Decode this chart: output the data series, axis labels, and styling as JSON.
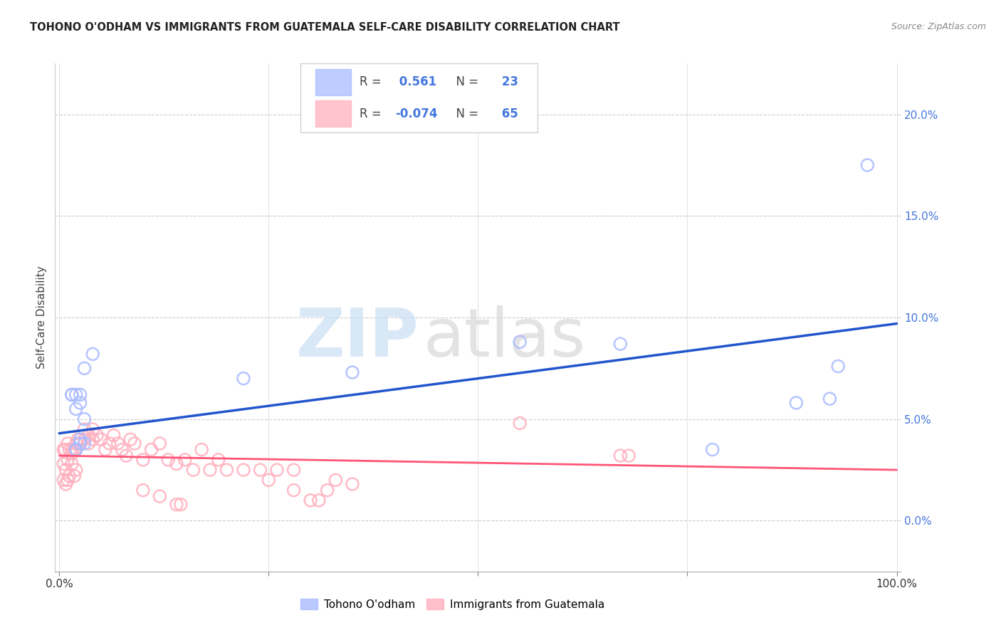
{
  "title": "TOHONO O'ODHAM VS IMMIGRANTS FROM GUATEMALA SELF-CARE DISABILITY CORRELATION CHART",
  "source": "Source: ZipAtlas.com",
  "ylabel": "Self-Care Disability",
  "xlim": [
    -0.005,
    1.005
  ],
  "ylim": [
    -0.025,
    0.225
  ],
  "ytick_vals": [
    0.0,
    0.05,
    0.1,
    0.15,
    0.2
  ],
  "ytick_labels": [
    "0.0%",
    "5.0%",
    "10.0%",
    "15.0%",
    "20.0%"
  ],
  "xtick_vals": [
    0.0,
    0.25,
    0.5,
    0.75,
    1.0
  ],
  "xtick_labels": [
    "0.0%",
    "",
    "",
    "",
    "100.0%"
  ],
  "blue_R": "0.561",
  "blue_N": "23",
  "pink_R": "-0.074",
  "pink_N": "65",
  "blue_scatter_color": "#AABBFF",
  "pink_scatter_color": "#FFB0BE",
  "blue_line_color": "#2255CC",
  "pink_line_color": "#FF5577",
  "ytick_color": "#4477DD",
  "blue_line": [
    0.0,
    0.043,
    1.0,
    0.097
  ],
  "pink_line": [
    0.0,
    0.032,
    1.0,
    0.025
  ],
  "blue_scatter_x": [
    0.02,
    0.03,
    0.04,
    0.025,
    0.02,
    0.025,
    0.015,
    0.02,
    0.025,
    0.03,
    0.02,
    0.025,
    0.03,
    0.015,
    0.22,
    0.35,
    0.55,
    0.67,
    0.78,
    0.88,
    0.92,
    0.93,
    0.965
  ],
  "blue_scatter_y": [
    0.055,
    0.075,
    0.082,
    0.062,
    0.062,
    0.058,
    0.062,
    0.035,
    0.038,
    0.05,
    0.035,
    0.04,
    0.038,
    0.062,
    0.07,
    0.073,
    0.088,
    0.087,
    0.035,
    0.058,
    0.06,
    0.076,
    0.175
  ],
  "pink_scatter_x": [
    0.005,
    0.007,
    0.01,
    0.012,
    0.015,
    0.015,
    0.018,
    0.02,
    0.022,
    0.025,
    0.03,
    0.03,
    0.035,
    0.035,
    0.04,
    0.04,
    0.045,
    0.05,
    0.055,
    0.06,
    0.065,
    0.07,
    0.075,
    0.08,
    0.085,
    0.09,
    0.1,
    0.11,
    0.12,
    0.13,
    0.14,
    0.15,
    0.16,
    0.17,
    0.18,
    0.19,
    0.2,
    0.22,
    0.24,
    0.26,
    0.28,
    0.1,
    0.12,
    0.14,
    0.145,
    0.25,
    0.28,
    0.3,
    0.31,
    0.32,
    0.33,
    0.35,
    0.005,
    0.008,
    0.01,
    0.012,
    0.015,
    0.018,
    0.02,
    0.55,
    0.67,
    0.68,
    0.005,
    0.008,
    0.01
  ],
  "pink_scatter_y": [
    0.035,
    0.035,
    0.038,
    0.035,
    0.035,
    0.033,
    0.035,
    0.038,
    0.04,
    0.038,
    0.045,
    0.04,
    0.042,
    0.038,
    0.045,
    0.04,
    0.042,
    0.04,
    0.035,
    0.038,
    0.042,
    0.038,
    0.035,
    0.032,
    0.04,
    0.038,
    0.03,
    0.035,
    0.038,
    0.03,
    0.028,
    0.03,
    0.025,
    0.035,
    0.025,
    0.03,
    0.025,
    0.025,
    0.025,
    0.025,
    0.025,
    0.015,
    0.012,
    0.008,
    0.008,
    0.02,
    0.015,
    0.01,
    0.01,
    0.015,
    0.02,
    0.018,
    0.028,
    0.025,
    0.03,
    0.022,
    0.028,
    0.022,
    0.025,
    0.048,
    0.032,
    0.032,
    0.02,
    0.018,
    0.02
  ]
}
